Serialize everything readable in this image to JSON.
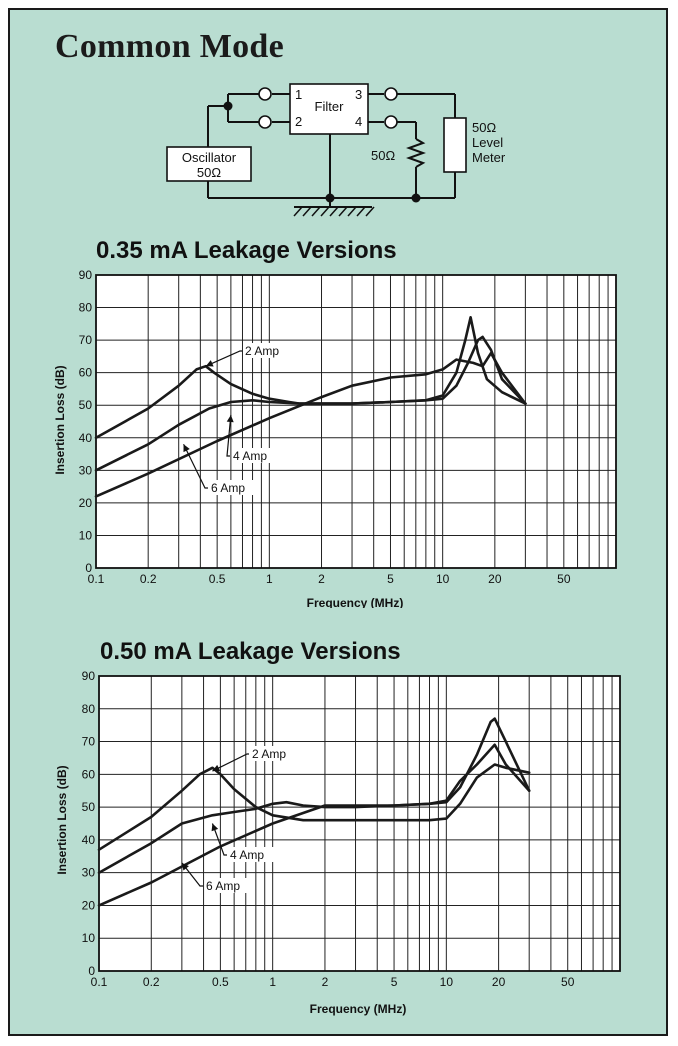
{
  "title": "Common Mode",
  "circuit": {
    "filter_label": "Filter",
    "pins": [
      "1",
      "2",
      "3",
      "4"
    ],
    "oscillator_lines": [
      "Oscillator",
      "50Ω"
    ],
    "resistor_label": "50Ω",
    "meter_lines": [
      "50Ω",
      "Level",
      "Meter"
    ]
  },
  "chart_data": [
    {
      "type": "line",
      "title": "0.35 mA Leakage Versions",
      "xlabel": "Frequency (MHz)",
      "ylabel": "Insertion Loss (dB)",
      "x_scale": "log",
      "xlim": [
        0.1,
        100
      ],
      "ylim": [
        0,
        90
      ],
      "x_ticks": [
        0.1,
        0.2,
        0.5,
        1,
        2,
        5,
        10,
        20,
        50
      ],
      "y_ticks": [
        0,
        10,
        20,
        30,
        40,
        50,
        60,
        70,
        80,
        90
      ],
      "grid": true,
      "series": [
        {
          "name": "2 Amp",
          "x": [
            0.1,
            0.2,
            0.3,
            0.38,
            0.43,
            0.48,
            0.6,
            0.8,
            1,
            1.3,
            1.5,
            2,
            3,
            5,
            8,
            10,
            12,
            13.5,
            14.5,
            16,
            18,
            22,
            30
          ],
          "y": [
            40,
            49,
            56,
            61,
            62,
            60,
            56.5,
            53.5,
            52,
            51,
            50.5,
            50.5,
            50.5,
            51,
            51.5,
            53,
            60,
            70,
            77,
            66,
            58,
            54,
            50.5
          ]
        },
        {
          "name": "4 Amp",
          "x": [
            0.1,
            0.2,
            0.3,
            0.45,
            0.6,
            0.8,
            1,
            1.5,
            2,
            3,
            5,
            8,
            10,
            12,
            14,
            16,
            17,
            19,
            22,
            30
          ],
          "y": [
            30,
            38,
            44,
            49,
            51,
            51.5,
            51,
            50.5,
            50.5,
            50.5,
            51,
            51.5,
            52,
            56,
            63,
            70,
            71,
            67,
            58,
            50.5
          ]
        },
        {
          "name": "6 Amp",
          "x": [
            0.1,
            0.2,
            0.5,
            1,
            2,
            3,
            5,
            8,
            10,
            12,
            15,
            17,
            19,
            22,
            30
          ],
          "y": [
            22,
            29,
            39,
            46,
            52.5,
            56,
            58.5,
            59.5,
            61,
            64,
            63,
            62,
            66,
            60,
            50.5
          ]
        }
      ],
      "annotations": [
        "2 Amp",
        "4 Amp",
        "6 Amp"
      ]
    },
    {
      "type": "line",
      "title": "0.50 mA Leakage Versions",
      "xlabel": "Frequency (MHz)",
      "ylabel": "Insertion Loss (dB)",
      "x_scale": "log",
      "xlim": [
        0.1,
        100
      ],
      "ylim": [
        0,
        90
      ],
      "x_ticks": [
        0.1,
        0.2,
        0.5,
        1,
        2,
        5,
        10,
        20,
        50
      ],
      "y_ticks": [
        0,
        10,
        20,
        30,
        40,
        50,
        60,
        70,
        80,
        90
      ],
      "grid": true,
      "series": [
        {
          "name": "2 Amp",
          "x": [
            0.1,
            0.2,
            0.3,
            0.38,
            0.45,
            0.5,
            0.6,
            0.8,
            1,
            1.5,
            2,
            3,
            5,
            8,
            10,
            12,
            15,
            19,
            22,
            30
          ],
          "y": [
            37,
            47,
            55,
            60,
            62,
            60,
            55.5,
            50,
            47.5,
            46,
            46,
            46,
            46,
            46,
            46.5,
            51,
            59,
            63,
            62,
            60.5
          ]
        },
        {
          "name": "4 Amp",
          "x": [
            0.1,
            0.2,
            0.3,
            0.45,
            0.6,
            0.8,
            1,
            1.2,
            1.5,
            2,
            3,
            5,
            8,
            10,
            12,
            15,
            18,
            19,
            22,
            30
          ],
          "y": [
            30,
            39,
            45,
            47.5,
            48.5,
            49.5,
            51,
            51.5,
            50.5,
            50,
            50,
            50.5,
            51,
            51.5,
            56,
            66,
            76,
            77,
            70,
            55
          ]
        },
        {
          "name": "6 Amp",
          "x": [
            0.1,
            0.2,
            0.5,
            1,
            2,
            3,
            5,
            8,
            10,
            12,
            15,
            19,
            22,
            30
          ],
          "y": [
            20,
            27,
            38,
            45,
            50.5,
            50.5,
            50.5,
            51,
            52,
            58,
            63,
            69,
            63,
            55
          ]
        }
      ],
      "annotations": [
        "2 Amp",
        "4 Amp",
        "6 Amp"
      ]
    }
  ]
}
